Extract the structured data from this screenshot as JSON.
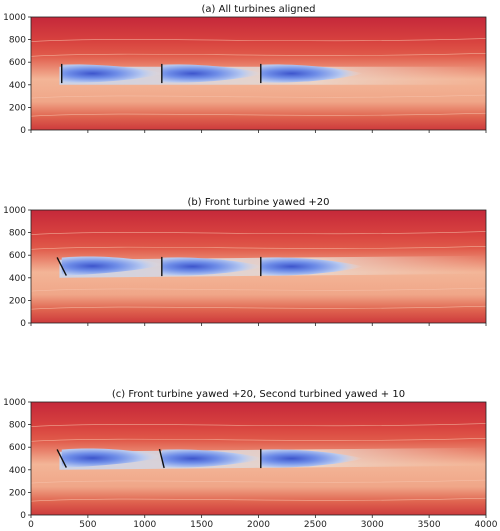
{
  "chart_data": {
    "type": "heatmap",
    "panels": [
      {
        "title": "(a)  All turbines aligned",
        "xlim": [
          0,
          4000
        ],
        "ylim": [
          0,
          1000
        ],
        "yticks": [
          0,
          200,
          400,
          600,
          800,
          1000
        ],
        "turbines": [
          {
            "x": 270,
            "y": 500,
            "yaw_deg": 0
          },
          {
            "x": 1150,
            "y": 500,
            "yaw_deg": 0
          },
          {
            "x": 2020,
            "y": 500,
            "yaw_deg": 0
          }
        ]
      },
      {
        "title": "(b)  Front turbine yawed +20",
        "xlim": [
          0,
          4000
        ],
        "ylim": [
          0,
          1000
        ],
        "yticks": [
          0,
          200,
          400,
          600,
          800,
          1000
        ],
        "turbines": [
          {
            "x": 270,
            "y": 500,
            "yaw_deg": 20
          },
          {
            "x": 1150,
            "y": 500,
            "yaw_deg": 0
          },
          {
            "x": 2020,
            "y": 500,
            "yaw_deg": 0
          }
        ]
      },
      {
        "title": "(c)  Front turbine yawed +20, Second turbined yawed + 10",
        "xlim": [
          0,
          4000
        ],
        "ylim": [
          0,
          1000
        ],
        "yticks": [
          0,
          200,
          400,
          600,
          800,
          1000
        ],
        "turbines": [
          {
            "x": 270,
            "y": 500,
            "yaw_deg": 20
          },
          {
            "x": 1150,
            "y": 500,
            "yaw_deg": 10
          },
          {
            "x": 2020,
            "y": 500,
            "yaw_deg": 0
          }
        ]
      }
    ],
    "xticks": [
      0,
      500,
      1000,
      1500,
      2000,
      2500,
      3000,
      3500,
      4000
    ],
    "colormap": [
      "#b40426",
      "#e7745b",
      "#f5c4ad",
      "#dddcdc",
      "#7b9ff9",
      "#3b4cc0"
    ]
  }
}
